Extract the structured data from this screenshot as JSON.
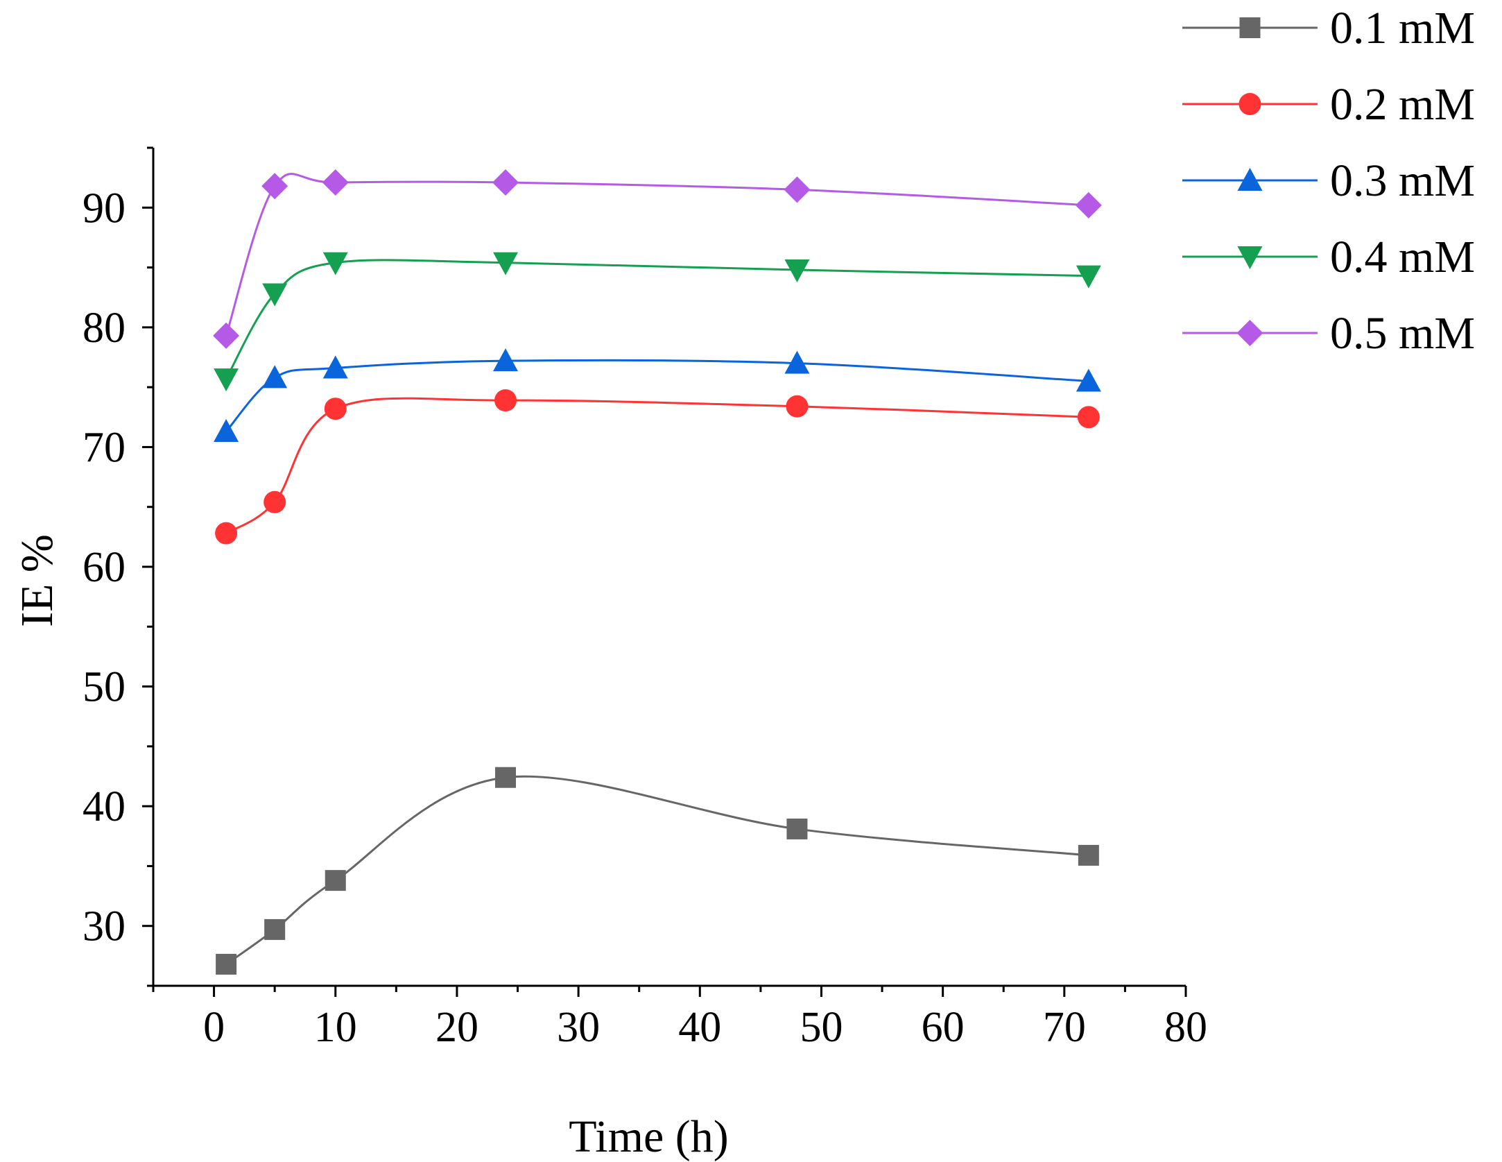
{
  "chart_data": {
    "type": "line",
    "title": "",
    "xlabel": "Time (h)",
    "ylabel": "IE %",
    "xlim": [
      -5,
      80
    ],
    "ylim": [
      25,
      95
    ],
    "xticks": [
      0,
      10,
      20,
      30,
      40,
      50,
      60,
      70,
      80
    ],
    "xtick_labels": [
      "0",
      "10",
      "20",
      "30",
      "40",
      "50",
      "60",
      "70",
      "80"
    ],
    "yticks": [
      30,
      40,
      50,
      60,
      70,
      80,
      90
    ],
    "ytick_labels": [
      "30",
      "40",
      "50",
      "60",
      "70",
      "80",
      "90"
    ],
    "grid": false,
    "legend_position": "top-right, outside plot",
    "x": [
      1,
      5,
      10,
      24,
      48,
      72
    ],
    "series": [
      {
        "name": "0.1 mM",
        "color": "#666666",
        "marker": "square",
        "values": [
          26.8,
          29.7,
          33.8,
          42.4,
          38.1,
          35.9
        ]
      },
      {
        "name": "0.2 mM",
        "color": "#ff3333",
        "marker": "circle",
        "values": [
          62.8,
          65.4,
          73.2,
          73.9,
          73.4,
          72.5
        ]
      },
      {
        "name": "0.3 mM",
        "color": "#0a64dc",
        "marker": "triangle-up",
        "values": [
          71.3,
          75.8,
          76.6,
          77.2,
          77.0,
          75.5
        ]
      },
      {
        "name": "0.4 mM",
        "color": "#14a050",
        "marker": "triangle-down",
        "values": [
          75.7,
          82.8,
          85.4,
          85.4,
          84.8,
          84.3
        ]
      },
      {
        "name": "0.5 mM",
        "color": "#b45ae6",
        "marker": "diamond",
        "values": [
          79.3,
          91.8,
          92.1,
          92.1,
          91.5,
          90.2
        ]
      }
    ]
  }
}
